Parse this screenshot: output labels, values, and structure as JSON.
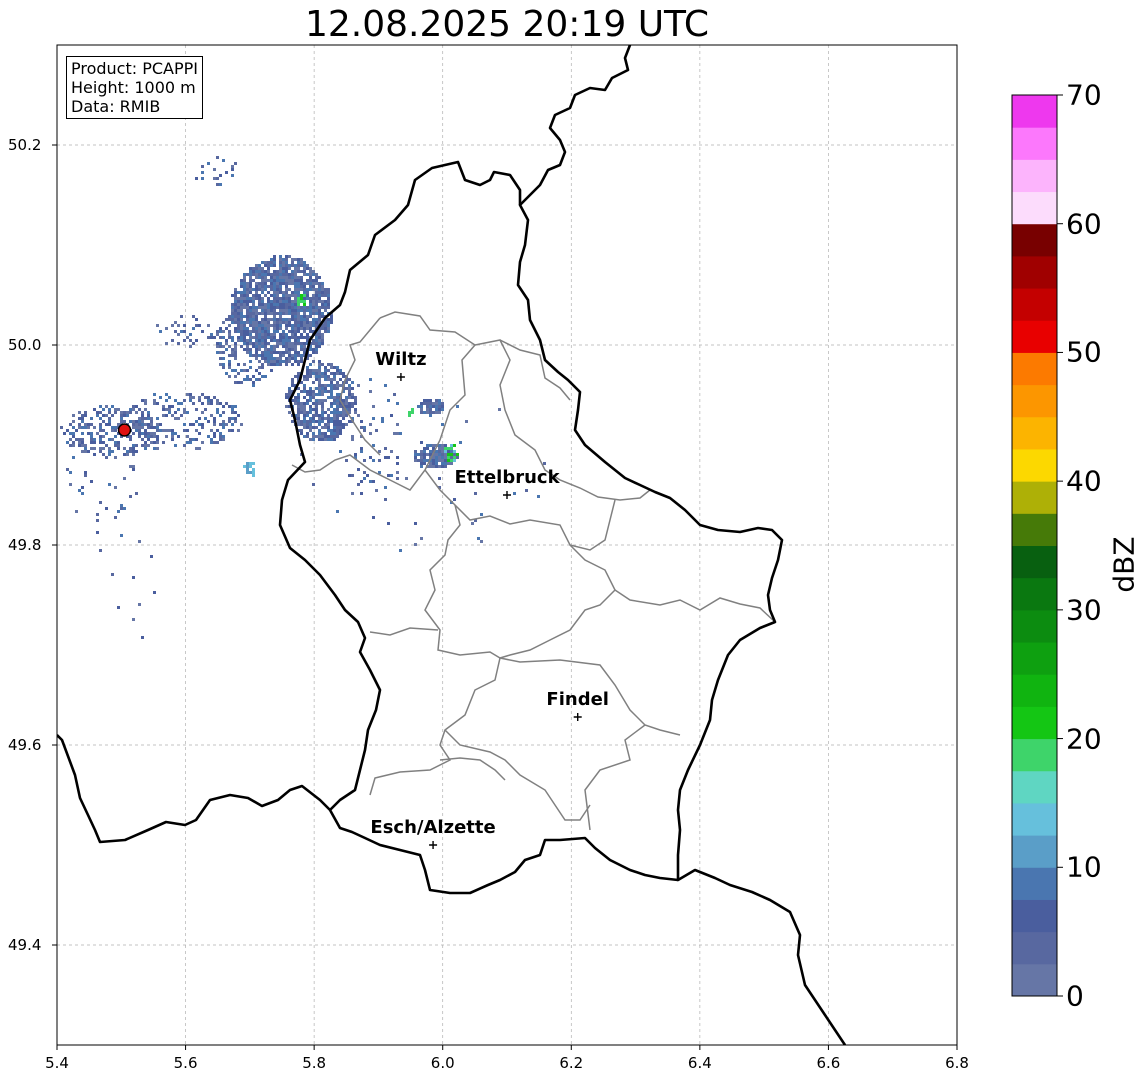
{
  "title": "12.08.2025 20:19 UTC",
  "info_box": {
    "product": "Product: PCAPPI",
    "height": "Height: 1000 m",
    "data": "Data: RMIB"
  },
  "axes": {
    "x_ticks": [
      "5.4",
      "5.6",
      "5.8",
      "6.0",
      "6.2",
      "6.4",
      "6.6",
      "6.8"
    ],
    "y_ticks": [
      "49.4",
      "49.6",
      "49.8",
      "50.0",
      "50.2"
    ],
    "xlim": [
      5.4,
      6.8
    ],
    "ylim": [
      49.3,
      50.3
    ]
  },
  "colorbar": {
    "label": "dBZ",
    "ticks": [
      "0",
      "10",
      "20",
      "30",
      "40",
      "50",
      "60",
      "70"
    ],
    "range": [
      0,
      70
    ],
    "colors": [
      "#6676a6",
      "#5868a0",
      "#4a5e9e",
      "#4a76b0",
      "#5a9ec8",
      "#66c0dc",
      "#5fd6c2",
      "#3ed46a",
      "#14c614",
      "#10b410",
      "#0ea010",
      "#0c8c10",
      "#0a7810",
      "#086010",
      "#467a08",
      "#aeb006",
      "#fcd800",
      "#fcb400",
      "#fc9600",
      "#fc7a00",
      "#e80000",
      "#c40000",
      "#a00000",
      "#780000",
      "#fcdcfc",
      "#fcb4fc",
      "#fc78fc",
      "#ee38ee"
    ]
  },
  "cities": [
    {
      "name": "Wiltz",
      "lon": 5.935,
      "lat": 49.968
    },
    {
      "name": "Ettelbruck",
      "lon": 6.1,
      "lat": 49.85
    },
    {
      "name": "Findel",
      "lon": 6.21,
      "lat": 49.628
    },
    {
      "name": "Esch/Alzette",
      "lon": 5.985,
      "lat": 49.5
    }
  ],
  "radar_site": {
    "lon": 5.505,
    "lat": 49.915,
    "color": "#e01010"
  }
}
